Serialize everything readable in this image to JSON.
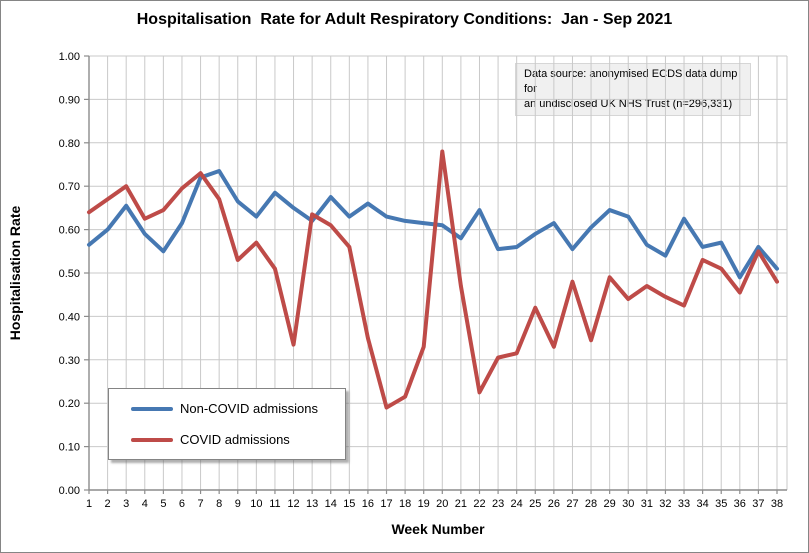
{
  "title": "Hospitalisation  Rate for Adult Respiratory Conditions:  Jan - Sep 2021",
  "annotation": {
    "line1": "Data source: anonymised ECDS data dump for",
    "line2": "an undisclosed UK NHS Trust (n=296,331)"
  },
  "colors": {
    "non_covid_line": "#4678B2",
    "covid_line": "#BE4B48",
    "gridline": "#C9C9C9",
    "axis": "#8C8C8C",
    "annotation_bg": "#F0F0F0"
  },
  "chart_data": {
    "type": "line",
    "title": "Hospitalisation Rate for Adult Respiratory Conditions: Jan - Sep 2021",
    "xlabel": "Week Number",
    "ylabel": "Hospitalisation Rate",
    "x": [
      1,
      2,
      3,
      4,
      5,
      6,
      7,
      8,
      9,
      10,
      11,
      12,
      13,
      14,
      15,
      16,
      17,
      18,
      19,
      20,
      21,
      22,
      23,
      24,
      25,
      26,
      27,
      28,
      29,
      30,
      31,
      32,
      33,
      34,
      35,
      36,
      37,
      38
    ],
    "ylim": [
      0,
      1
    ],
    "ytick_step": 0.1,
    "grid": true,
    "legend_position": "bottom-left-inside",
    "series": [
      {
        "name": "Non-COVID admissions",
        "color": "#4678B2",
        "values": [
          0.565,
          0.6,
          0.655,
          0.59,
          0.55,
          0.615,
          0.72,
          0.735,
          0.665,
          0.63,
          0.685,
          0.65,
          0.62,
          0.675,
          0.63,
          0.66,
          0.63,
          0.62,
          0.615,
          0.61,
          0.58,
          0.645,
          0.555,
          0.56,
          0.59,
          0.615,
          0.555,
          0.605,
          0.645,
          0.63,
          0.565,
          0.54,
          0.625,
          0.56,
          0.57,
          0.49,
          0.56,
          0.51
        ]
      },
      {
        "name": "COVID admissions",
        "color": "#BE4B48",
        "values": [
          0.64,
          0.67,
          0.7,
          0.625,
          0.645,
          0.695,
          0.73,
          0.67,
          0.53,
          0.57,
          0.51,
          0.335,
          0.635,
          0.61,
          0.56,
          0.35,
          0.19,
          0.215,
          0.33,
          0.78,
          0.47,
          0.225,
          0.305,
          0.315,
          0.42,
          0.33,
          0.48,
          0.345,
          0.49,
          0.44,
          0.47,
          0.445,
          0.425,
          0.53,
          0.51,
          0.455,
          0.55,
          0.48
        ]
      }
    ]
  }
}
